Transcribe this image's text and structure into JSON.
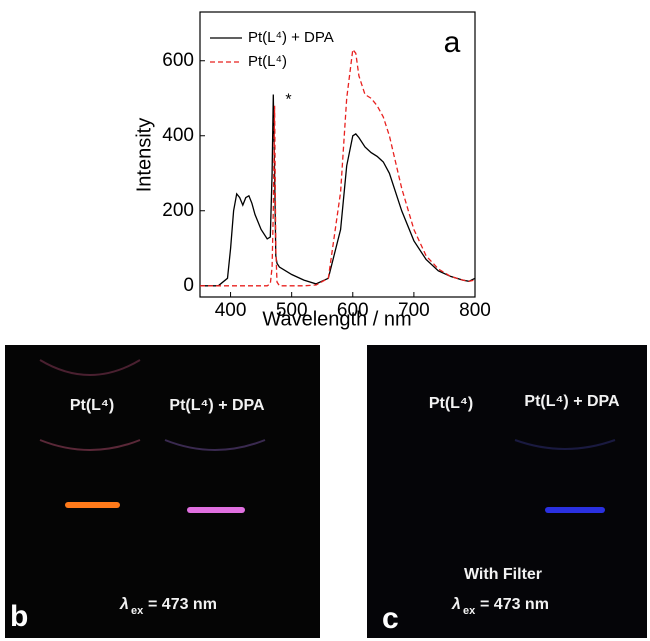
{
  "chart_data": {
    "type": "line",
    "panel_label": "a",
    "annotation": "*",
    "x_label": "Wavelength / nm",
    "y_label": "Intensity",
    "x": [
      350,
      380,
      395,
      400,
      405,
      410,
      415,
      420,
      425,
      430,
      435,
      440,
      450,
      460,
      465,
      468,
      470,
      472,
      474,
      476,
      480,
      500,
      520,
      540,
      560,
      580,
      590,
      600,
      605,
      610,
      620,
      630,
      640,
      650,
      660,
      680,
      700,
      720,
      740,
      760,
      780,
      790,
      800
    ],
    "series": [
      {
        "name": "Pt(L⁴) + DPA",
        "color": "#000000",
        "dash": false,
        "values": [
          0,
          0,
          20,
          100,
          200,
          245,
          235,
          215,
          235,
          240,
          220,
          190,
          150,
          125,
          130,
          300,
          510,
          300,
          80,
          60,
          50,
          30,
          15,
          5,
          20,
          150,
          320,
          400,
          405,
          395,
          370,
          355,
          345,
          330,
          300,
          200,
          120,
          70,
          40,
          25,
          15,
          12,
          20
        ]
      },
      {
        "name": "Pt(L⁴)",
        "color": "#e8211f",
        "dash": true,
        "values": [
          0,
          0,
          0,
          0,
          0,
          0,
          0,
          0,
          0,
          0,
          0,
          0,
          0,
          0,
          5,
          50,
          200,
          480,
          100,
          10,
          0,
          0,
          0,
          2,
          20,
          250,
          500,
          630,
          620,
          560,
          510,
          500,
          480,
          450,
          400,
          260,
          150,
          80,
          45,
          25,
          15,
          12,
          15
        ]
      }
    ],
    "xlim": [
      350,
      800
    ],
    "xticks": [
      400,
      500,
      600,
      700,
      800
    ],
    "ylim": [
      -30,
      730
    ],
    "yticks": [
      0,
      200,
      400,
      600
    ],
    "legend": "upper left"
  },
  "photos": [
    {
      "label": "b",
      "left": "Pt(L⁴)",
      "right": "Pt(L⁴) + DPA",
      "lambda": "λ",
      "sub": "ex",
      "rest": "= 473 nm"
    },
    {
      "label": "c",
      "left": "Pt(L⁴)",
      "right": "Pt(L⁴) + DPA",
      "note": "With Filter",
      "lambda": "λ",
      "sub": "ex",
      "rest": "= 473 nm"
    }
  ]
}
